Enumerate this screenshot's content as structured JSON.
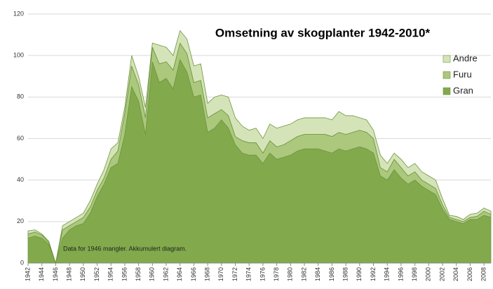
{
  "chart_data": {
    "type": "stacked-area",
    "title": "Omsetning av skogplanter 1942-2010*",
    "annotation": "Data for 1946 mangler.  Akkumulert diagram.",
    "x": [
      1942,
      1943,
      1944,
      1945,
      1946,
      1947,
      1948,
      1949,
      1950,
      1951,
      1952,
      1953,
      1954,
      1955,
      1956,
      1957,
      1958,
      1959,
      1960,
      1961,
      1962,
      1963,
      1964,
      1965,
      1966,
      1967,
      1968,
      1969,
      1970,
      1971,
      1972,
      1973,
      1974,
      1975,
      1976,
      1977,
      1978,
      1979,
      1980,
      1981,
      1982,
      1983,
      1984,
      1985,
      1986,
      1987,
      1988,
      1989,
      1990,
      1991,
      1992,
      1993,
      1994,
      1995,
      1996,
      1997,
      1998,
      1999,
      2000,
      2001,
      2002,
      2003,
      2004,
      2005,
      2006,
      2007,
      2008,
      2009
    ],
    "series": [
      {
        "name": "Gran",
        "color": "#82aa4c",
        "values": [
          12,
          13,
          12,
          9,
          0,
          12,
          16,
          18,
          19,
          24,
          32,
          38,
          46,
          48,
          62,
          85,
          78,
          62,
          97,
          87,
          89,
          84,
          98,
          92,
          80,
          81,
          63,
          65,
          69,
          65,
          57,
          53,
          52,
          52,
          48,
          53,
          50,
          51,
          52,
          54,
          55,
          55,
          55,
          54,
          53,
          55,
          54,
          55,
          56,
          55,
          53,
          42,
          40,
          45,
          41,
          38,
          40,
          37,
          35,
          33,
          26,
          21,
          20,
          19,
          21,
          21,
          23,
          22
        ]
      },
      {
        "name": "Furu",
        "color": "#abc87c",
        "values": [
          2,
          2,
          1.5,
          1,
          0,
          4,
          2,
          2,
          3,
          3,
          3,
          3,
          4,
          6,
          10,
          10,
          8,
          8,
          7,
          9,
          8,
          9,
          8,
          9,
          7,
          7,
          7,
          7,
          5,
          6,
          4,
          6,
          6,
          6,
          5,
          6,
          6,
          6,
          7,
          7,
          7,
          7,
          7,
          8,
          8,
          8,
          8,
          8,
          8,
          8,
          7,
          4,
          4,
          5,
          5,
          4,
          4,
          3,
          3,
          3,
          2,
          1,
          1,
          1,
          1,
          1.5,
          2,
          1.5
        ]
      },
      {
        "name": "Andre",
        "color": "#d5e4b8",
        "values": [
          1.5,
          1,
          0.5,
          0.5,
          0,
          2,
          2,
          2,
          2,
          3,
          3,
          4,
          5,
          4,
          3,
          5,
          4,
          5,
          2,
          9,
          7,
          7,
          6,
          7,
          8,
          8,
          7,
          8,
          7,
          9,
          9,
          7,
          6,
          7,
          7,
          8,
          9,
          9,
          8,
          8,
          8,
          8,
          8,
          8,
          8,
          10,
          9,
          8,
          6,
          6,
          4,
          6,
          4,
          3,
          4,
          4,
          4,
          4,
          4,
          4,
          3,
          1,
          1.5,
          1,
          1.5,
          1.5,
          1.5,
          1.5
        ]
      }
    ],
    "xlim": [
      1942,
      2009
    ],
    "xticks": [
      1942,
      1944,
      1946,
      1948,
      1950,
      1952,
      1954,
      1956,
      1958,
      1960,
      1962,
      1964,
      1966,
      1968,
      1970,
      1972,
      1974,
      1976,
      1978,
      1980,
      1982,
      1984,
      1986,
      1988,
      1990,
      1992,
      1994,
      1996,
      1998,
      2000,
      2002,
      2004,
      2006,
      2008
    ],
    "ylim": [
      0,
      120
    ],
    "yticks": [
      0,
      20,
      40,
      60,
      80,
      100,
      120
    ],
    "grid": true,
    "legend": "upper right"
  }
}
